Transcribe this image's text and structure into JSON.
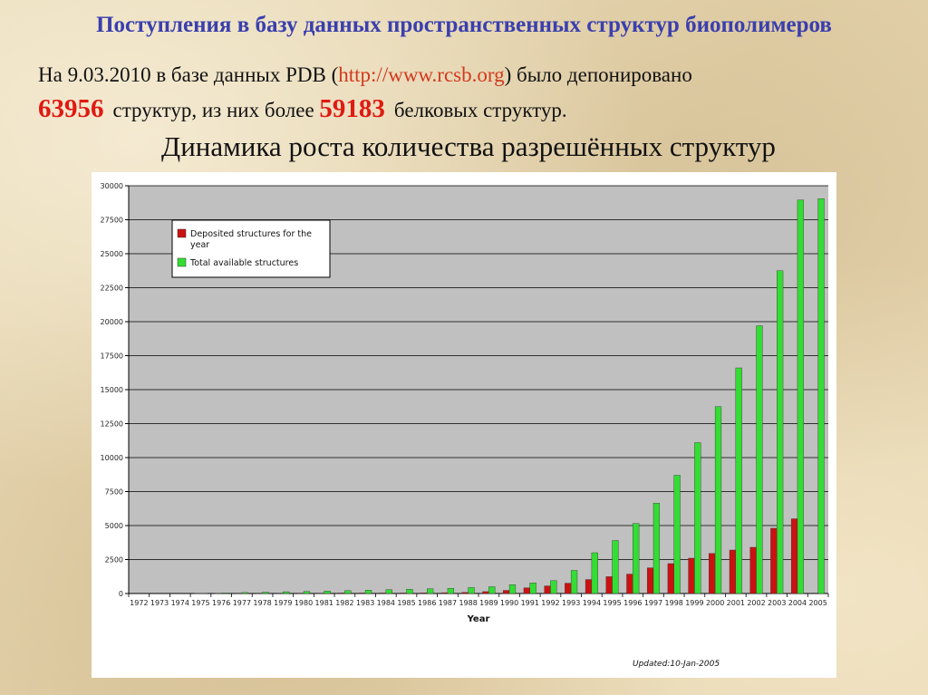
{
  "slide": {
    "title": "Поступления в базу данных пространственных структур биополимеров",
    "line1_prefix": "На 9.03.2010 в базе данных PDB (",
    "line1_url": "http://www.rcsb.org",
    "line1_suffix": ") было депонировано",
    "line2_num1": "63956",
    "line2_mid": "структур, из них более",
    "line2_num2": "59183",
    "line2_end": "белковых структур.",
    "subtitle": "Динамика роста количества разрешённых структур"
  },
  "colors": {
    "title": "#3a3fae",
    "highlight": "#e01a12",
    "url": "#d23a1e",
    "deposited": "#cc1111",
    "total": "#33dd33",
    "plot_bg": "#c0c0c0"
  },
  "chart_data": {
    "type": "bar",
    "title": "",
    "xlabel": "Year",
    "ylabel": "",
    "ylim": [
      0,
      30000
    ],
    "yticks": [
      0,
      2500,
      5000,
      7500,
      10000,
      12500,
      15000,
      17500,
      20000,
      22500,
      25000,
      27500,
      30000
    ],
    "grid": true,
    "legend_position": "top-left",
    "categories": [
      "1972",
      "1973",
      "1974",
      "1975",
      "1976",
      "1977",
      "1978",
      "1979",
      "1980",
      "1981",
      "1982",
      "1983",
      "1984",
      "1985",
      "1986",
      "1987",
      "1988",
      "1989",
      "1990",
      "1991",
      "1992",
      "1993",
      "1994",
      "1995",
      "1996",
      "1997",
      "1998",
      "1999",
      "2000",
      "2001",
      "2002",
      "2003",
      "2004",
      "2005"
    ],
    "series": [
      {
        "name": "Deposited structures for the year",
        "color": "#cc1111",
        "values": [
          0,
          0,
          0,
          20,
          20,
          30,
          30,
          30,
          30,
          30,
          40,
          40,
          40,
          40,
          50,
          60,
          80,
          140,
          230,
          420,
          560,
          760,
          1030,
          1240,
          1430,
          1890,
          2200,
          2600,
          2950,
          3200,
          3400,
          4800,
          5500,
          0
        ]
      },
      {
        "name": "Total available structures",
        "color": "#33dd33",
        "values": [
          0,
          0,
          0,
          20,
          40,
          70,
          100,
          130,
          150,
          180,
          210,
          250,
          280,
          320,
          350,
          380,
          440,
          500,
          650,
          780,
          950,
          1700,
          3000,
          3900,
          5150,
          6650,
          8700,
          11100,
          13750,
          16600,
          19700,
          23750,
          28950,
          29050
        ]
      }
    ],
    "annotation": "Updated:10-Jan-2005"
  }
}
